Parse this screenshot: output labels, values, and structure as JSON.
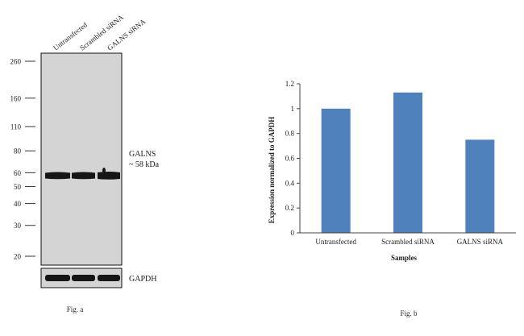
{
  "fig_a": {
    "lane_labels": [
      "Untransfected",
      "Scrambled siRNA",
      "GALNS siRNA"
    ],
    "markers": [
      {
        "label": "260",
        "kda": 260
      },
      {
        "label": "160",
        "kda": 160
      },
      {
        "label": "110",
        "kda": 110
      },
      {
        "label": "80",
        "kda": 80
      },
      {
        "label": "60",
        "kda": 60
      },
      {
        "label": "50",
        "kda": 50
      },
      {
        "label": "40",
        "kda": 40
      },
      {
        "label": "30",
        "kda": 30
      },
      {
        "label": "20",
        "kda": 20
      }
    ],
    "band_label": "GALNS",
    "band_size": "~ 58 kDa",
    "loading_label": "GAPDH",
    "caption": "Fig. a",
    "colors": {
      "blot_bg": "#d4d4d4",
      "band": "#151515",
      "frame": "#111111"
    }
  },
  "chart_data": {
    "type": "bar",
    "categories": [
      "Untransfected",
      "Scrambled siRNA",
      "GALNS siRNA"
    ],
    "values": [
      1.0,
      1.13,
      0.75
    ],
    "yticks": [
      "0",
      "0.2",
      "0.4",
      "0.6",
      "0.8",
      "1",
      "1.2"
    ],
    "ylim": [
      0,
      1.2
    ],
    "xlabel": "Samples",
    "ylabel": "Expression normalized to GAPDH",
    "title": "",
    "grid": false,
    "bar_color": "#4f81bd",
    "caption": "Fig. b"
  }
}
